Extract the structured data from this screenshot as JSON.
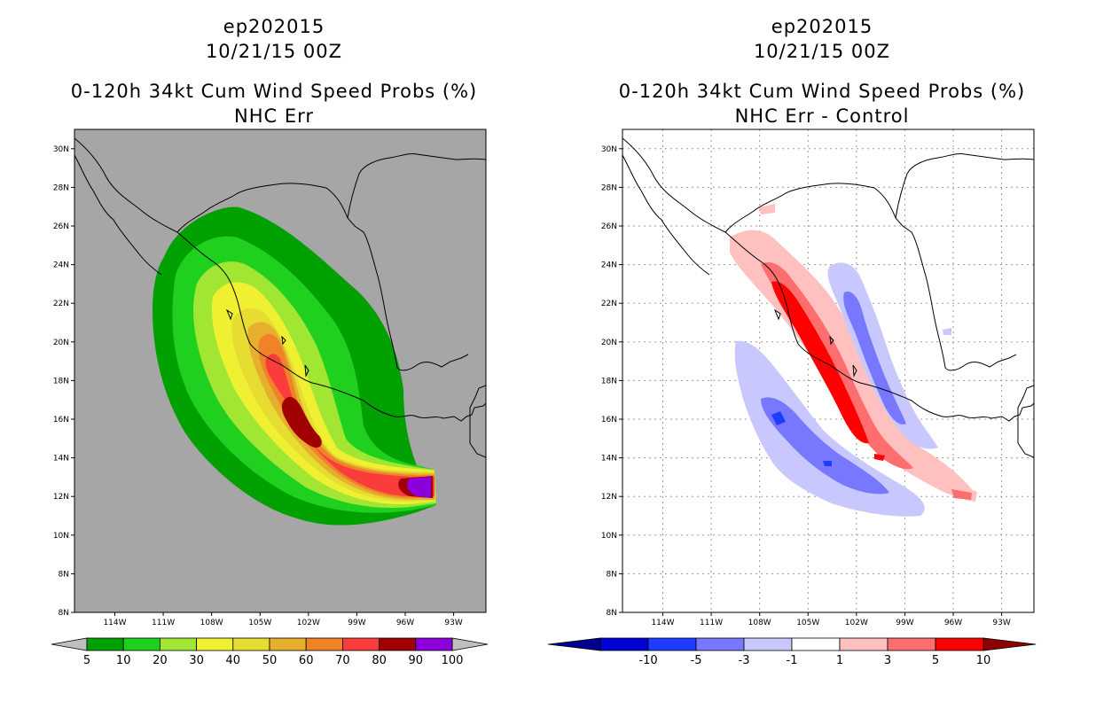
{
  "left": {
    "storm_id": "ep202015",
    "datetime": "10/21/15 00Z",
    "product": "0-120h 34kt Cum Wind Speed Probs (%)",
    "subtitle": "NHC Err",
    "map_background": "#a6a6a6",
    "colorbar": {
      "labels": [
        "5",
        "10",
        "20",
        "30",
        "40",
        "50",
        "60",
        "70",
        "80",
        "90",
        "100"
      ],
      "colors": [
        "#00a000",
        "#1fd01f",
        "#a0e632",
        "#f0f032",
        "#e6dc32",
        "#e6af2d",
        "#f08228",
        "#fa3c3c",
        "#a00000",
        "#8c00dc"
      ],
      "end_arrow_color": "#bfbfbf"
    }
  },
  "right": {
    "storm_id": "ep202015",
    "datetime": "10/21/15 00Z",
    "product": "0-120h 34kt Cum Wind Speed Probs (%)",
    "subtitle": "NHC Err - Control",
    "map_background": "#ffffff",
    "colorbar": {
      "labels": [
        "-10",
        "-5",
        "-3",
        "-1",
        "1",
        "3",
        "5",
        "10"
      ],
      "colors": [
        "#0000d2",
        "#1e3cff",
        "#7878ff",
        "#c8c8ff",
        "#ffffff",
        "#ffc0c0",
        "#ff6e6e",
        "#ff0000"
      ],
      "low_arrow_color": "#00008c",
      "high_arrow_color": "#8c0000"
    }
  },
  "axes": {
    "lat_labels": [
      "8N",
      "8N",
      "10N",
      "12N",
      "14N",
      "16N",
      "18N",
      "20N",
      "22N",
      "24N",
      "26N",
      "28N",
      "30N"
    ],
    "lon_labels": [
      "114W",
      "111W",
      "108W",
      "105W",
      "102W",
      "99W",
      "96W",
      "93W"
    ]
  }
}
